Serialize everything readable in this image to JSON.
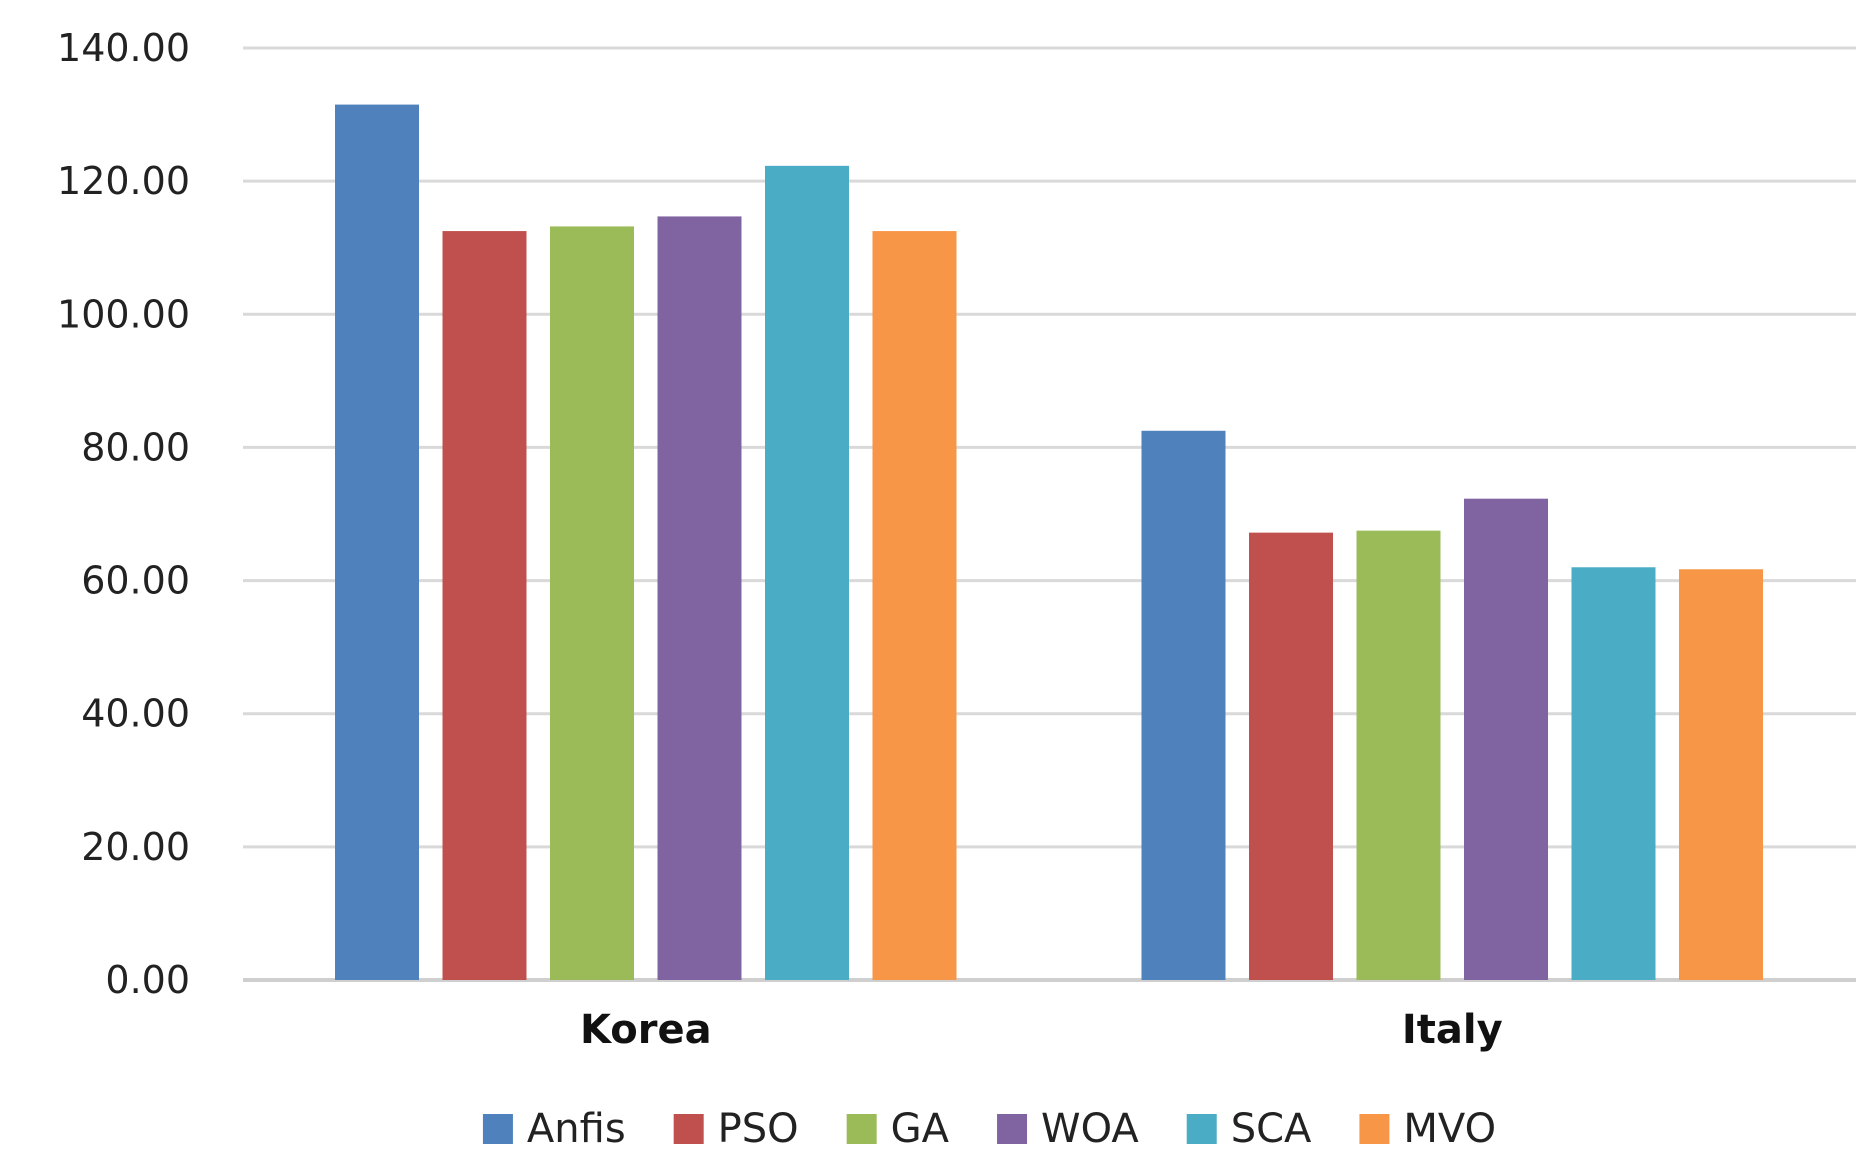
{
  "chart_data": {
    "type": "bar",
    "categories": [
      "Korea",
      "Italy"
    ],
    "series": [
      {
        "name": "Anfis",
        "color": "#4F81BD",
        "values": [
          131.5,
          82.5
        ]
      },
      {
        "name": "PSO",
        "color": "#C0504D",
        "values": [
          112.5,
          67.2
        ]
      },
      {
        "name": "GA",
        "color": "#9BBB59",
        "values": [
          113.2,
          67.5
        ]
      },
      {
        "name": "WOA",
        "color": "#8064A2",
        "values": [
          114.7,
          72.3
        ]
      },
      {
        "name": "SCA",
        "color": "#4BACC6",
        "values": [
          122.3,
          62.0
        ]
      },
      {
        "name": "MVO",
        "color": "#F79646",
        "values": [
          112.5,
          61.7
        ]
      }
    ],
    "yticks": [
      "0.00",
      "20.00",
      "40.00",
      "60.00",
      "80.00",
      "100.00",
      "120.00",
      "140.00"
    ],
    "ylim": [
      0,
      140
    ],
    "grid": true,
    "legend_position": "bottom"
  }
}
